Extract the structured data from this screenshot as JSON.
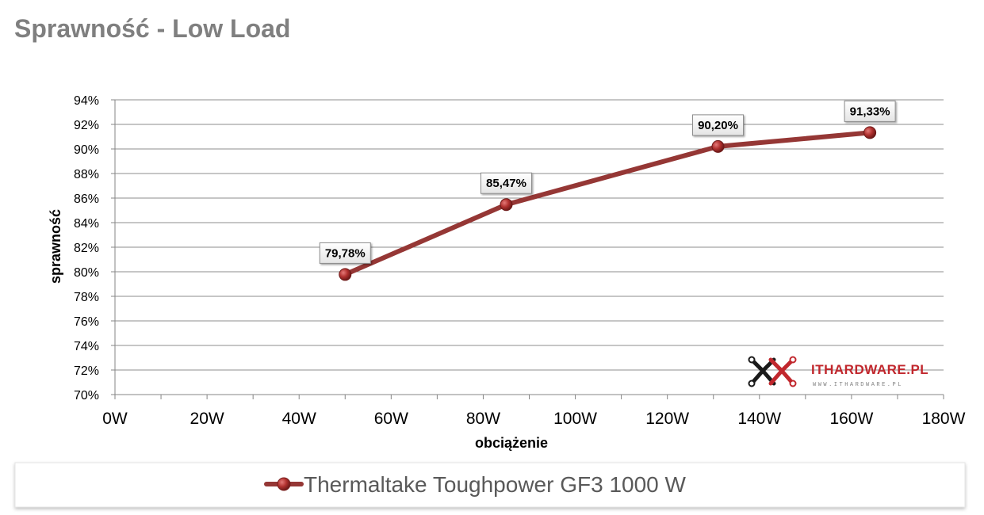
{
  "chart_data": {
    "type": "line",
    "title": "Sprawność - Low Load",
    "xlabel": "obciążenie",
    "ylabel": "sprawność",
    "xlim": [
      0,
      180
    ],
    "ylim": [
      70,
      94
    ],
    "x_ticks": [
      "0W",
      "20W",
      "40W",
      "60W",
      "80W",
      "100W",
      "120W",
      "140W",
      "160W",
      "180W"
    ],
    "y_ticks": [
      "70%",
      "72%",
      "74%",
      "76%",
      "78%",
      "80%",
      "82%",
      "84%",
      "86%",
      "88%",
      "90%",
      "92%",
      "94%"
    ],
    "grid": true,
    "legend_position": "bottom",
    "series": [
      {
        "name": "Thermaltake Toughpower GF3 1000 W",
        "color": "#953735",
        "x": [
          50,
          85,
          131,
          164
        ],
        "y": [
          79.78,
          85.47,
          90.2,
          91.33
        ],
        "labels": [
          "79,78%",
          "85,47%",
          "90,20%",
          "91,33%"
        ]
      }
    ]
  },
  "watermark": {
    "brand": "ITHARDWARE.PL",
    "url": "WWW.ITHARDWARE.PL",
    "icon": "ithardware-logo-icon"
  }
}
